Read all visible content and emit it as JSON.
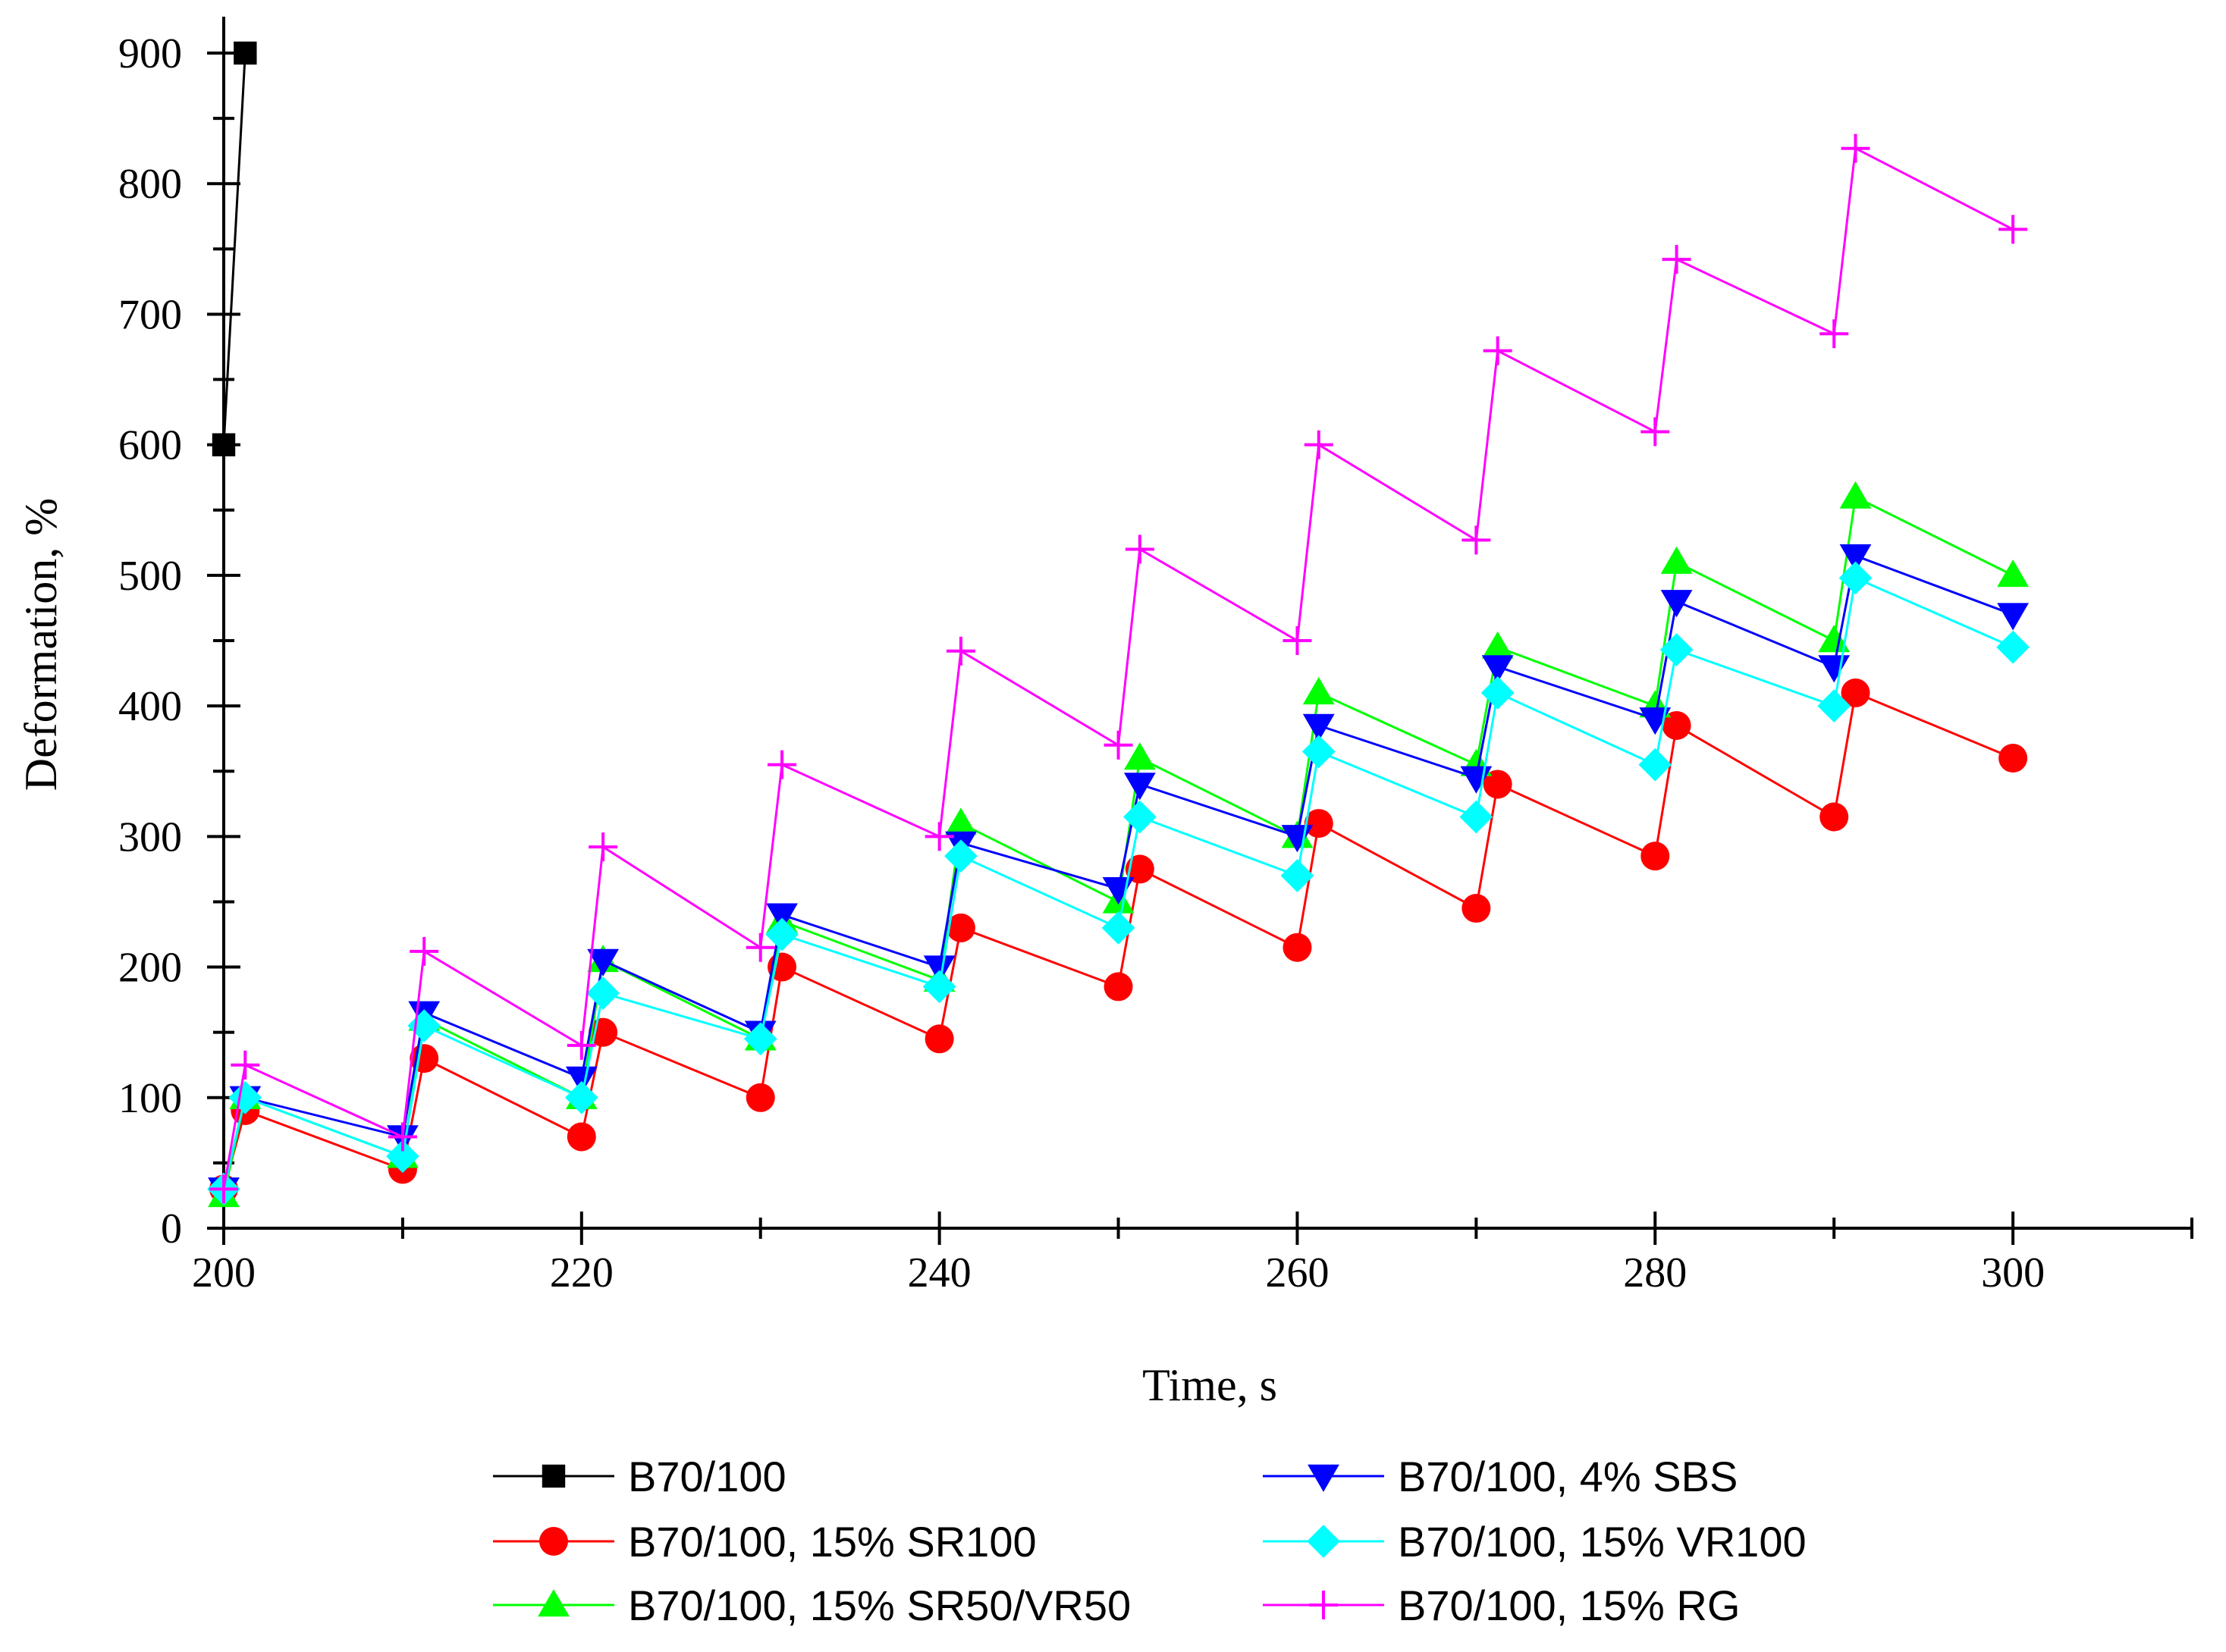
{
  "chart_data": {
    "type": "line",
    "title": "",
    "xlabel": "Time, s",
    "ylabel": "Deformation, %",
    "xlim": [
      200,
      310
    ],
    "ylim": [
      0,
      900
    ],
    "xticks": [
      200,
      220,
      240,
      260,
      280,
      300
    ],
    "yticks": [
      0,
      100,
      200,
      300,
      400,
      500,
      600,
      700,
      800,
      900
    ],
    "xtick_labels": [
      "200",
      "220",
      "240",
      "260",
      "280",
      "300"
    ],
    "ytick_labels": [
      "0",
      "100",
      "200",
      "300",
      "400",
      "500",
      "600",
      "700",
      "800",
      "900"
    ],
    "grid": false,
    "legend_position": "bottom",
    "series": [
      {
        "name": "B70/100",
        "color": "#000000",
        "marker": "square",
        "x": [
          200,
          201.2
        ],
        "y": [
          600,
          900
        ]
      },
      {
        "name": "B70/100, 4% SBS",
        "color": "#0000ff",
        "marker": "triangle-down",
        "x": [
          200,
          201.2,
          210,
          211.2,
          220,
          221.2,
          230,
          231.2,
          240,
          241.2,
          250,
          251.2,
          260,
          261.2,
          270,
          271.2,
          280,
          281.2,
          290,
          291.2,
          300
        ],
        "y": [
          30,
          100,
          70,
          165,
          115,
          205,
          150,
          240,
          200,
          295,
          260,
          340,
          300,
          385,
          345,
          430,
          390,
          480,
          430,
          515,
          470
        ]
      },
      {
        "name": "B70/100, 15% SR100",
        "color": "#ff0000",
        "marker": "circle",
        "x": [
          200,
          201.2,
          210,
          211.2,
          220,
          221.2,
          230,
          231.2,
          240,
          241.2,
          250,
          251.2,
          260,
          261.2,
          270,
          271.2,
          280,
          281.2,
          290,
          291.2,
          300
        ],
        "y": [
          30,
          90,
          45,
          130,
          70,
          150,
          100,
          200,
          145,
          230,
          185,
          275,
          215,
          310,
          245,
          340,
          285,
          385,
          315,
          410,
          360
        ]
      },
      {
        "name": "B70/100, 15% VR100",
        "color": "#00ffff",
        "marker": "diamond",
        "x": [
          200,
          201.2,
          210,
          211.2,
          220,
          221.2,
          230,
          231.2,
          240,
          241.2,
          250,
          251.2,
          260,
          261.2,
          270,
          271.2,
          280,
          281.2,
          290,
          291.2,
          300
        ],
        "y": [
          30,
          100,
          55,
          155,
          100,
          180,
          145,
          225,
          185,
          285,
          230,
          315,
          270,
          365,
          315,
          410,
          355,
          443,
          400,
          498,
          445
        ]
      },
      {
        "name": "B70/100, 15% SR50/VR50",
        "color": "#00ff00",
        "marker": "triangle-up",
        "x": [
          200,
          201.2,
          210,
          211.2,
          220,
          221.2,
          230,
          231.2,
          240,
          241.2,
          250,
          251.2,
          260,
          261.2,
          270,
          271.2,
          280,
          281.2,
          290,
          291.2,
          300
        ],
        "y": [
          25,
          100,
          55,
          160,
          100,
          205,
          145,
          235,
          190,
          310,
          250,
          360,
          300,
          410,
          355,
          445,
          400,
          510,
          450,
          560,
          500
        ]
      },
      {
        "name": "B70/100, 15% RG",
        "color": "#ff00ff",
        "marker": "plus",
        "x": [
          200,
          201.2,
          210,
          211.2,
          220,
          221.2,
          230,
          231.2,
          240,
          241.2,
          250,
          251.2,
          260,
          261.2,
          270,
          271.2,
          280,
          281.2,
          290,
          291.2,
          300
        ],
        "y": [
          30,
          125,
          70,
          212,
          140,
          292,
          215,
          355,
          300,
          442,
          370,
          520,
          450,
          600,
          527,
          672,
          610,
          742,
          685,
          827,
          765
        ]
      }
    ],
    "legend_order": [
      [
        "B70/100",
        "B70/100, 4% SBS"
      ],
      [
        "B70/100, 15% SR100",
        "B70/100, 15% VR100"
      ],
      [
        "B70/100, 15% SR50/VR50",
        "B70/100, 15% RG"
      ]
    ]
  }
}
